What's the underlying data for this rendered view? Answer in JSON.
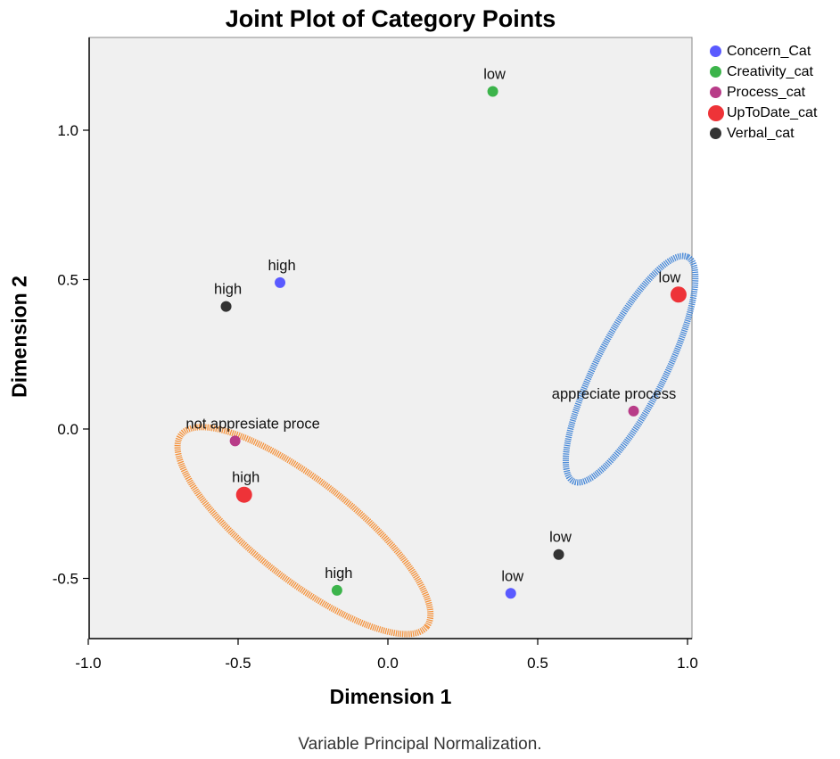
{
  "chart_data": {
    "type": "scatter",
    "title": "Joint Plot of Category Points",
    "xlabel": "Dimension 1",
    "ylabel": "Dimension 2",
    "xlim": [
      -1.0,
      1.0
    ],
    "ylim": [
      -0.7,
      1.3
    ],
    "x_ticks": [
      "-1.0",
      "-0.5",
      "0.0",
      "0.5",
      "1.0"
    ],
    "y_ticks": [
      "1.0",
      "0.5",
      "0.0",
      "-0.5"
    ],
    "footnote": "Variable Principal Normalization.",
    "legend_position": "top-right",
    "plot_background": "#f0f0f0",
    "series": [
      {
        "name": "Concern_Cat",
        "color": "#5a5aff",
        "points": [
          {
            "x": -0.36,
            "y": 0.49,
            "label": "high"
          },
          {
            "x": 0.41,
            "y": -0.55,
            "label": "low"
          }
        ]
      },
      {
        "name": "Creativity_cat",
        "color": "#3cb44b",
        "points": [
          {
            "x": 0.35,
            "y": 1.13,
            "label": "low"
          },
          {
            "x": -0.17,
            "y": -0.54,
            "label": "high"
          }
        ]
      },
      {
        "name": "Process_cat",
        "color": "#b83c88",
        "points": [
          {
            "x": -0.51,
            "y": -0.04,
            "label": "not appresiate proce"
          },
          {
            "x": 0.82,
            "y": 0.06,
            "label": "appreciate process"
          }
        ]
      },
      {
        "name": "UpToDate_cat",
        "color": "#ee3338",
        "points": [
          {
            "x": -0.48,
            "y": -0.22,
            "label": "high"
          },
          {
            "x": 0.97,
            "y": 0.45,
            "label": "low"
          }
        ]
      },
      {
        "name": "Verbal_cat",
        "color": "#333333",
        "points": [
          {
            "x": -0.54,
            "y": 0.41,
            "label": "high"
          },
          {
            "x": 0.57,
            "y": -0.42,
            "label": "low"
          }
        ]
      }
    ],
    "annotations": [
      {
        "shape": "ellipse",
        "color": "#f5933d",
        "cx": -0.28,
        "cy": -0.34,
        "rx": 0.52,
        "ry": 0.165,
        "rotation_deg": 38
      },
      {
        "shape": "ellipse",
        "color": "#4a8ad8",
        "cx": 0.81,
        "cy": 0.2,
        "rx": 0.42,
        "ry": 0.115,
        "rotation_deg": -63
      }
    ]
  }
}
